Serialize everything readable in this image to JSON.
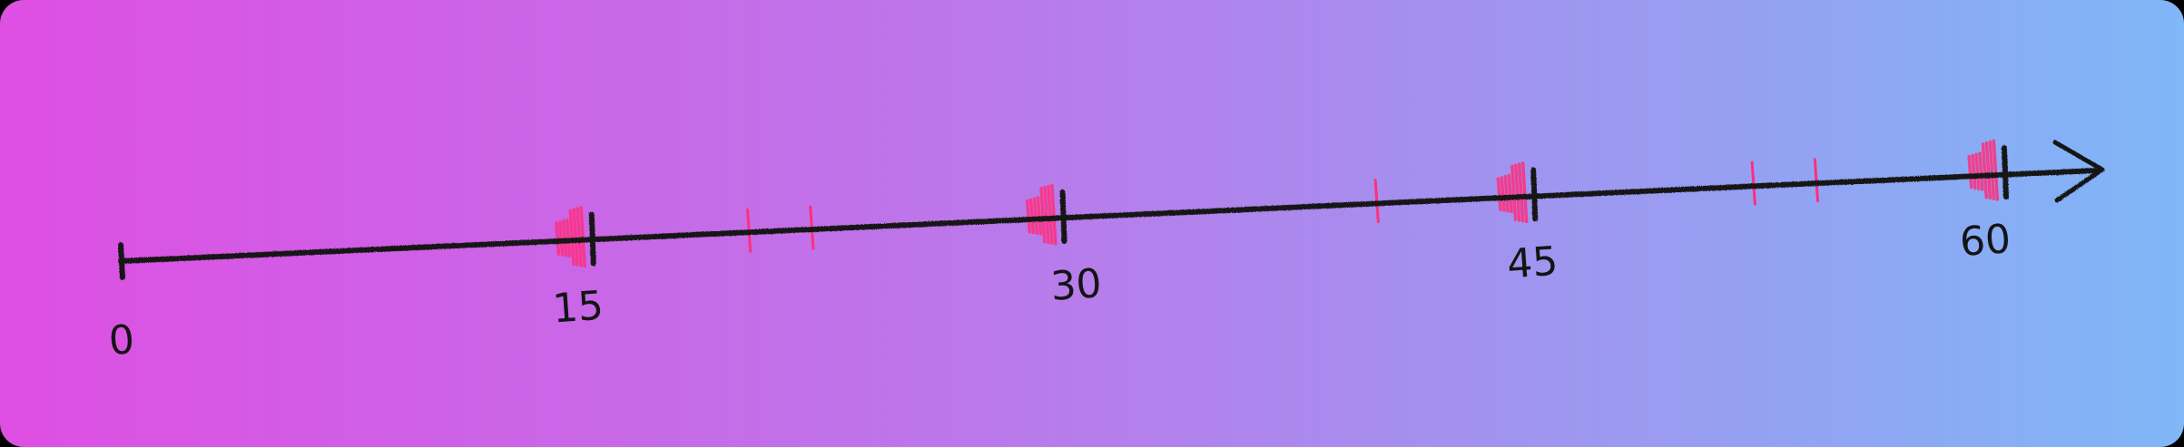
{
  "number_line": {
    "labels": [
      {
        "text": "0",
        "value": 0
      },
      {
        "text": "15",
        "value": 15
      },
      {
        "text": "30",
        "value": 30
      },
      {
        "text": "45",
        "value": 45
      },
      {
        "text": "60",
        "value": 60
      }
    ],
    "highlighted_values": [
      15,
      30,
      45,
      60
    ],
    "minor_marks": [
      20,
      22,
      40,
      52,
      54
    ],
    "arrow_direction": "right"
  },
  "colors": {
    "gradient_start": "#de4fe3",
    "gradient_mid": "#bb78ea",
    "gradient_end": "#7fb7f7",
    "line": "#141414",
    "mark": "#ff2f7e"
  }
}
